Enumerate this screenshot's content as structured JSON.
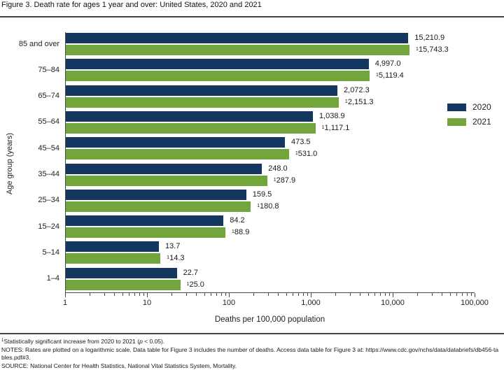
{
  "title": "Figure 3. Death rate for ages 1 year and over: United States, 2020 and 2021",
  "chart_data": {
    "type": "bar",
    "orientation": "horizontal",
    "x_scale": "log",
    "xlim": [
      1,
      100000
    ],
    "grid": false,
    "legend_position": "right",
    "xlabel": "Deaths per 100,000 population",
    "ylabel": "Age group (years)",
    "x_ticks": [
      "1",
      "10",
      "100",
      "1,000",
      "10,000",
      "100,000"
    ],
    "categories": [
      "85 and over",
      "75–84",
      "65–74",
      "55–64",
      "45–54",
      "35–44",
      "25–34",
      "15–24",
      "5–14",
      "1–4"
    ],
    "series": [
      {
        "name": "2020",
        "color": "#14375f",
        "values": [
          15210.9,
          4997.0,
          2072.3,
          1038.9,
          473.5,
          248.0,
          159.5,
          84.2,
          13.7,
          22.7
        ],
        "labels": [
          "15,210.9",
          "4,997.0",
          "2,072.3",
          "1,038.9",
          "473.5",
          "248.0",
          "159.5",
          "84.2",
          "13.7",
          "22.7"
        ]
      },
      {
        "name": "2021",
        "color": "#72a53c",
        "sig_marker": "1",
        "values": [
          15743.3,
          5119.4,
          2151.3,
          1117.1,
          531.0,
          287.9,
          180.8,
          88.9,
          14.3,
          25.0
        ],
        "labels": [
          "15,743.3",
          "5,119.4",
          "2,151.3",
          "1,117.1",
          "531.0",
          "287.9",
          "180.8",
          "88.9",
          "14.3",
          "25.0"
        ]
      }
    ]
  },
  "footnotes": {
    "sig_sup": "1",
    "sig_pre": "Statistically significant increase from 2020 to 2021 (",
    "sig_p": "p",
    "sig_post": " < 0.05).",
    "notes": "NOTES: Rates are plotted on a logarithmic scale. Data table for Figure 3 includes the number of deaths. Access data table for Figure 3 at: https://www.cdc.gov/nchs/data/databriefs/db456-tables.pdf#3.",
    "source": "SOURCE: National Center for Health Statistics, National Vital Statistics System, Mortality."
  },
  "colors": {
    "axis": "#4a4a4a",
    "bar_2020": "#14375f",
    "bar_2021": "#72a53c"
  }
}
